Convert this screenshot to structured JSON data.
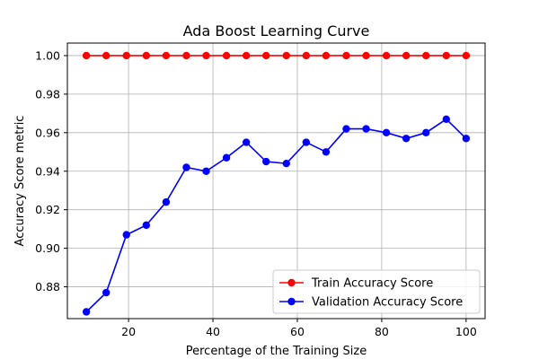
{
  "chart_data": {
    "type": "line",
    "title": "Ada Boost Learning Curve",
    "xlabel": "Percentage of the Training Size",
    "ylabel": "Accuracy Score metric",
    "xlim": [
      5.5,
      104.5
    ],
    "ylim": [
      0.8635,
      1.0065
    ],
    "xticks": [
      20,
      40,
      60,
      80,
      100
    ],
    "xtick_labels": [
      "20",
      "40",
      "60",
      "80",
      "100"
    ],
    "yticks": [
      0.88,
      0.9,
      0.92,
      0.94,
      0.96,
      0.98,
      1.0
    ],
    "ytick_labels": [
      "0.88",
      "0.90",
      "0.92",
      "0.94",
      "0.96",
      "0.98",
      "1.00"
    ],
    "grid": true,
    "legend_position": "lower-right",
    "x": [
      10,
      14.7,
      19.5,
      24.2,
      28.9,
      33.7,
      38.4,
      43.2,
      47.9,
      52.6,
      57.4,
      62.1,
      66.8,
      71.6,
      76.3,
      81.1,
      85.8,
      90.5,
      95.3,
      100
    ],
    "series": [
      {
        "name": "Train Accuracy Score",
        "color": "#ff0000",
        "values": [
          1.0,
          1.0,
          1.0,
          1.0,
          1.0,
          1.0,
          1.0,
          1.0,
          1.0,
          1.0,
          1.0,
          1.0,
          1.0,
          1.0,
          1.0,
          1.0,
          1.0,
          1.0,
          1.0,
          1.0
        ]
      },
      {
        "name": "Validation Accuracy Score",
        "color": "#0000ff",
        "values": [
          0.867,
          0.877,
          0.907,
          0.912,
          0.924,
          0.942,
          0.94,
          0.947,
          0.955,
          0.945,
          0.944,
          0.955,
          0.95,
          0.962,
          0.962,
          0.96,
          0.957,
          0.96,
          0.967,
          0.957
        ]
      }
    ]
  }
}
